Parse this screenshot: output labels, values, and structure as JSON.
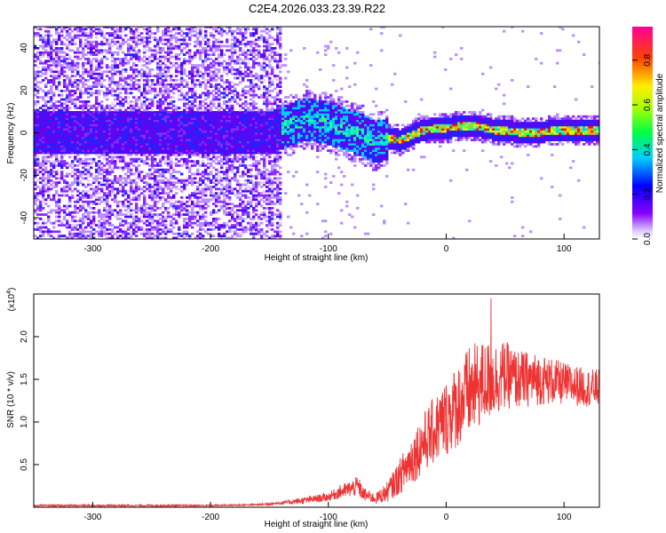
{
  "title": "C2E4.2026.033.23.39.R22",
  "colors": {
    "snr_line": "#ee3333",
    "frame": "#000000",
    "low_amp": "#c9b0ff",
    "mid_amp": "#6a00ff"
  },
  "chart_data": [
    {
      "type": "heatmap",
      "title": "C2E4.2026.033.23.39.R22",
      "xlabel": "Height of straight line (km)",
      "ylabel": "Frequency (Hz)",
      "xlim": [
        -350,
        130
      ],
      "ylim": [
        -50,
        50
      ],
      "x_ticks": [
        -300,
        -200,
        -100,
        0,
        100
      ],
      "x_tick_labels": [
        "-300",
        "-200",
        "-100",
        "0",
        "100"
      ],
      "y_ticks": [
        -40,
        -20,
        0,
        20,
        40
      ],
      "y_tick_labels": [
        "-40",
        "-20",
        "0",
        "20",
        "40"
      ],
      "colorbar": {
        "label": "Normalized spectral amplitude",
        "range": [
          0.0,
          0.95
        ],
        "ticks": [
          0.0,
          0.2,
          0.4,
          0.6,
          0.8
        ],
        "tick_labels": [
          "0.0",
          "0.2",
          "0.4",
          "0.6",
          "0.8"
        ],
        "colormap": [
          "#ffffff",
          "#8800ff",
          "#0000ff",
          "#00ffff",
          "#00ff00",
          "#ffff00",
          "#ff0000",
          "#ff00aa"
        ]
      },
      "ridge": {
        "x": [
          -200,
          -150,
          -120,
          -100,
          -80,
          -70,
          -60,
          -50,
          -40,
          -20,
          0,
          20,
          40,
          60,
          80,
          100,
          130
        ],
        "frequency": [
          0,
          0,
          6,
          4,
          0,
          -2,
          -5,
          -3,
          -4,
          1,
          2,
          3,
          1,
          0,
          0,
          1,
          1
        ]
      },
      "notes": "broadband diffuse noise (purple/violet) from -350 to -140 km spanning full band; narrow coherent line near 0 Hz strengthening toward positive heights (green/yellow/red)"
    },
    {
      "type": "line",
      "xlabel": "Height of straight line (km)",
      "ylabel": "SNR (10 * v/v)",
      "y_multiplier_label": "(x10",
      "y_multiplier_exp": "4",
      "xlim": [
        -350,
        130
      ],
      "ylim": [
        0,
        2.5
      ],
      "x_ticks": [
        -300,
        -200,
        -100,
        0,
        100
      ],
      "x_tick_labels": [
        "-300",
        "-200",
        "-100",
        "0",
        "100"
      ],
      "y_ticks": [
        0.5,
        1.0,
        1.5,
        2.0
      ],
      "y_tick_labels": [
        "0.5",
        "1.0",
        "1.5",
        "2.0"
      ],
      "series": [
        {
          "name": "SNR",
          "x": [
            -350,
            -300,
            -250,
            -200,
            -160,
            -140,
            -120,
            -100,
            -90,
            -80,
            -75,
            -70,
            -60,
            -50,
            -40,
            -30,
            -20,
            -10,
            0,
            10,
            20,
            30,
            40,
            50,
            60,
            80,
            100,
            120,
            130
          ],
          "y": [
            0.02,
            0.02,
            0.02,
            0.02,
            0.03,
            0.05,
            0.08,
            0.12,
            0.18,
            0.22,
            0.25,
            0.15,
            0.1,
            0.18,
            0.35,
            0.55,
            0.75,
            0.9,
            1.05,
            1.2,
            1.35,
            1.45,
            1.5,
            1.55,
            1.5,
            1.5,
            1.45,
            1.4,
            1.4
          ],
          "noise_amplitude": [
            0.01,
            0.01,
            0.01,
            0.01,
            0.01,
            0.02,
            0.04,
            0.05,
            0.08,
            0.1,
            0.12,
            0.08,
            0.06,
            0.12,
            0.2,
            0.3,
            0.35,
            0.4,
            0.45,
            0.5,
            0.55,
            0.5,
            0.45,
            0.4,
            0.35,
            0.3,
            0.25,
            0.22,
            0.22
          ],
          "peak": {
            "x": 38,
            "y": 2.45
          }
        }
      ]
    }
  ]
}
